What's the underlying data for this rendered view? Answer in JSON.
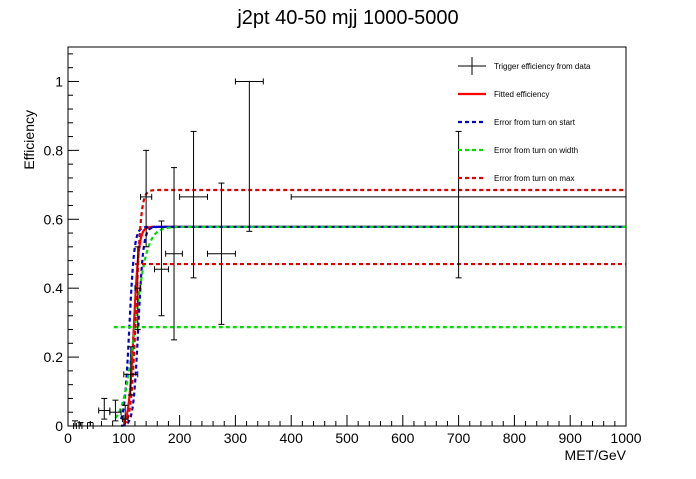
{
  "chart_data": {
    "type": "line",
    "title": "j2pt 40-50 mjj 1000-5000",
    "xlabel": "MET/GeV",
    "ylabel": "Efficiency",
    "xlim": [
      0,
      1000
    ],
    "ylim": [
      0,
      1.1
    ],
    "grid": false,
    "legend_position": "top-right",
    "x_ticks": [
      0,
      100,
      200,
      300,
      400,
      500,
      600,
      700,
      800,
      900,
      1000
    ],
    "y_ticks": [
      0,
      0.2,
      0.4,
      0.6,
      0.8,
      1
    ],
    "y_tick_labels": [
      "0",
      "0.2",
      "0.4",
      "0.6",
      "0.8",
      "1"
    ],
    "legend": [
      {
        "label": "Trigger efficiency from data",
        "style": "errorbar",
        "color": "#000000"
      },
      {
        "label": "Fitted efficiency",
        "style": "solid",
        "color": "#ff0000"
      },
      {
        "label": "Error from turn on start",
        "style": "dashed",
        "color": "#0000cc"
      },
      {
        "label": "Error from turn on width",
        "style": "dashed",
        "color": "#00dd00"
      },
      {
        "label": "Error from turn on max",
        "style": "dashed",
        "color": "#dd0000"
      }
    ],
    "data_points": [
      {
        "x": 12.5,
        "xerr": 2.5,
        "y": 0.0,
        "ylo": 0.0,
        "yhi": 0.015
      },
      {
        "x": 22.5,
        "xerr": 2.5,
        "y": 0.0,
        "ylo": 0.0,
        "yhi": 0.01
      },
      {
        "x": 40,
        "xerr": 5,
        "y": 0.0,
        "ylo": 0.0,
        "yhi": 0.01
      },
      {
        "x": 65,
        "xerr": 10,
        "y": 0.045,
        "ylo": 0.02,
        "yhi": 0.08
      },
      {
        "x": 85,
        "xerr": 10,
        "y": 0.04,
        "ylo": 0.015,
        "yhi": 0.075
      },
      {
        "x": 102.5,
        "xerr": 5,
        "y": 0.02,
        "ylo": 0.0,
        "yhi": 0.06
      },
      {
        "x": 112.5,
        "xerr": 12.5,
        "y": 0.15,
        "ylo": 0.09,
        "yhi": 0.23
      },
      {
        "x": 125,
        "xerr": 5,
        "y": 0.4,
        "ylo": 0.28,
        "yhi": 0.52
      },
      {
        "x": 140,
        "xerr": 10,
        "y": 0.665,
        "ylo": 0.52,
        "yhi": 0.8
      },
      {
        "x": 167.5,
        "xerr": 12.5,
        "y": 0.455,
        "ylo": 0.32,
        "yhi": 0.595
      },
      {
        "x": 190,
        "xerr": 15,
        "y": 0.5,
        "ylo": 0.25,
        "yhi": 0.75
      },
      {
        "x": 225,
        "xerr": 25,
        "y": 0.665,
        "ylo": 0.43,
        "yhi": 0.855
      },
      {
        "x": 275,
        "xerr": 25,
        "y": 0.5,
        "ylo": 0.295,
        "yhi": 0.705
      },
      {
        "x": 325,
        "xerr": 25,
        "y": 1.0,
        "ylo": 0.565,
        "yhi": 1.0
      },
      {
        "x": 700,
        "xerr": 300,
        "y": 0.665,
        "ylo": 0.43,
        "yhi": 0.855
      }
    ],
    "curves": [
      {
        "name": "Fitted efficiency",
        "color": "#ff0000",
        "style": "solid",
        "x0": 118,
        "width": 4.5,
        "plateau": 0.578,
        "from_x": 100,
        "to_x": 1000
      },
      {
        "name": "Error from turn on start (low)",
        "color": "#0000cc",
        "style": "dashed",
        "x0": 110,
        "width": 4.5,
        "plateau": 0.578,
        "from_x": 95,
        "to_x": 1000
      },
      {
        "name": "Error from turn on start (high)",
        "color": "#0000cc",
        "style": "dashed",
        "x0": 126,
        "width": 4.5,
        "plateau": 0.578,
        "from_x": 95,
        "to_x": 1000
      },
      {
        "name": "Error from turn on width (wide)",
        "color": "#00dd00",
        "style": "dashed",
        "x0": 120,
        "width": 11,
        "plateau": 0.578,
        "from_x": 85,
        "to_x": 1000
      },
      {
        "name": "Error from turn on width (flat)",
        "color": "#00dd00",
        "style": "dashed",
        "x0": -1000,
        "width": 1,
        "plateau": 0.287,
        "from_x": 82,
        "to_x": 1000
      },
      {
        "name": "Error from turn on max (high)",
        "color": "#dd0000",
        "style": "dashed",
        "x0": 122,
        "width": 4.5,
        "plateau": 0.685,
        "from_x": 100,
        "to_x": 1000
      },
      {
        "name": "Error from turn on max (low)",
        "color": "#dd0000",
        "style": "dashed",
        "x0": -1000,
        "width": 1,
        "plateau": 0.47,
        "from_x": 120,
        "to_x": 1000
      }
    ]
  }
}
